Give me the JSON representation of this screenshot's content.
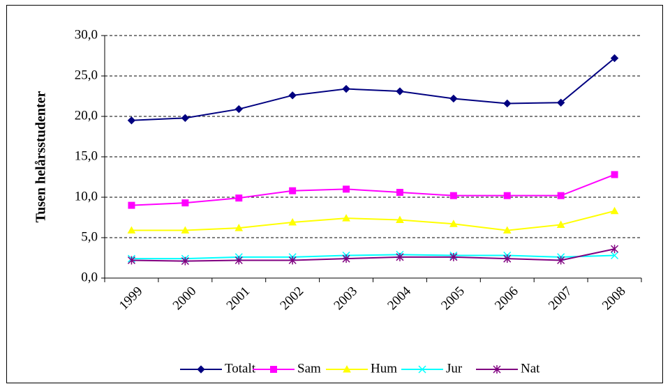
{
  "chart_data": {
    "type": "line",
    "y_label": "Tusen helårsstudenter",
    "categories": [
      "1999",
      "2000",
      "2001",
      "2002",
      "2003",
      "2004",
      "2005",
      "2006",
      "2007",
      "2008"
    ],
    "series": [
      {
        "name": "Totalt",
        "color": "#000080",
        "marker": "diamond",
        "values": [
          19.5,
          19.8,
          20.9,
          22.6,
          23.4,
          23.1,
          22.2,
          21.6,
          21.7,
          27.2
        ]
      },
      {
        "name": "Sam",
        "color": "#ff00ff",
        "marker": "square",
        "values": [
          9.0,
          9.3,
          9.9,
          10.8,
          11.0,
          10.6,
          10.2,
          10.2,
          10.2,
          12.8
        ]
      },
      {
        "name": "Hum",
        "color": "#ffff00",
        "marker": "triangle",
        "values": [
          5.9,
          5.9,
          6.2,
          6.9,
          7.4,
          7.2,
          6.7,
          5.9,
          6.6,
          8.3
        ]
      },
      {
        "name": "Jur",
        "color": "#00ffff",
        "marker": "x",
        "values": [
          2.4,
          2.4,
          2.6,
          2.6,
          2.8,
          2.9,
          2.8,
          2.8,
          2.6,
          2.8
        ]
      },
      {
        "name": "Nat",
        "color": "#800080",
        "marker": "asterisk",
        "values": [
          2.2,
          2.1,
          2.2,
          2.2,
          2.4,
          2.6,
          2.6,
          2.4,
          2.2,
          3.6
        ]
      }
    ],
    "ylim": [
      0,
      30
    ],
    "yticks": [
      {
        "value": 0,
        "label": "0,0"
      },
      {
        "value": 5,
        "label": "5,0"
      },
      {
        "value": 10,
        "label": "10,0"
      },
      {
        "value": 15,
        "label": "15,0"
      },
      {
        "value": 20,
        "label": "20,0"
      },
      {
        "value": 25,
        "label": "25,0"
      },
      {
        "value": 30,
        "label": "30,0"
      }
    ],
    "grid": true,
    "legend": "bottom"
  }
}
